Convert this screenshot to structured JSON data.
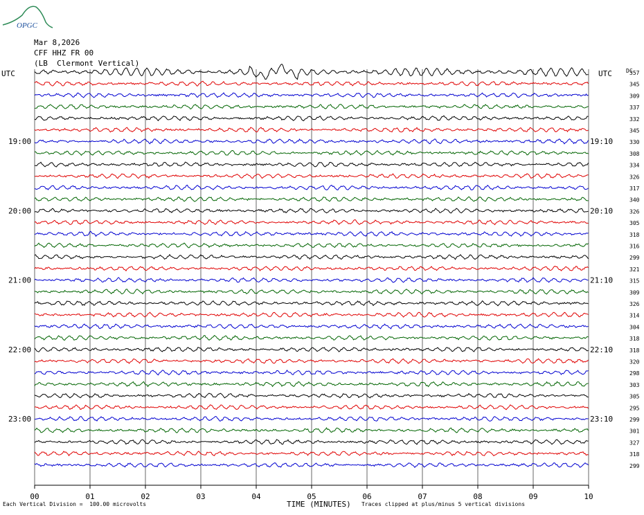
{
  "header": {
    "date": "Mar 8,2026",
    "station": "CFF HHZ FR 00",
    "location": "(LB  Clermont Vertical)"
  },
  "logo_text": "OPGC",
  "utc_left": "UTC",
  "utc_right": "UTC",
  "dc_label": "DC",
  "footer": {
    "scale_note": "Each Vertical Division =  100.00 microvolts",
    "clip_note": "Traces clipped at plus/minus 5 vertical divisions",
    "x_title": "TIME (MINUTES)"
  },
  "colors": {
    "trace_cycle": [
      "#000000",
      "#e00000",
      "#0000d0",
      "#006400"
    ],
    "grid": "#000000"
  },
  "chart_data": {
    "type": "line",
    "title": "",
    "xlabel": "TIME (MINUTES)",
    "xlim": [
      0,
      10
    ],
    "x_ticks": [
      "00",
      "01",
      "02",
      "03",
      "04",
      "05",
      "06",
      "07",
      "08",
      "09",
      "10"
    ],
    "left_hour_labels": [
      {
        "row": 6,
        "text": "19:00"
      },
      {
        "row": 12,
        "text": "20:00"
      },
      {
        "row": 18,
        "text": "21:00"
      },
      {
        "row": 24,
        "text": "22:00"
      },
      {
        "row": 30,
        "text": "23:00"
      }
    ],
    "right_hour_labels": [
      {
        "row": 6,
        "text": "19:10"
      },
      {
        "row": 12,
        "text": "20:10"
      },
      {
        "row": 18,
        "text": "21:10"
      },
      {
        "row": 24,
        "text": "22:10"
      },
      {
        "row": 30,
        "text": "23:10"
      }
    ],
    "dc_offsets": [
      357,
      345,
      309,
      337,
      332,
      345,
      330,
      308,
      334,
      326,
      317,
      340,
      326,
      305,
      318,
      316,
      299,
      321,
      315,
      309,
      326,
      314,
      304,
      318,
      318,
      320,
      298,
      303,
      305,
      295,
      299,
      301,
      327,
      318,
      299
    ],
    "trace_count": 35,
    "minutes_per_trace": 10
  }
}
